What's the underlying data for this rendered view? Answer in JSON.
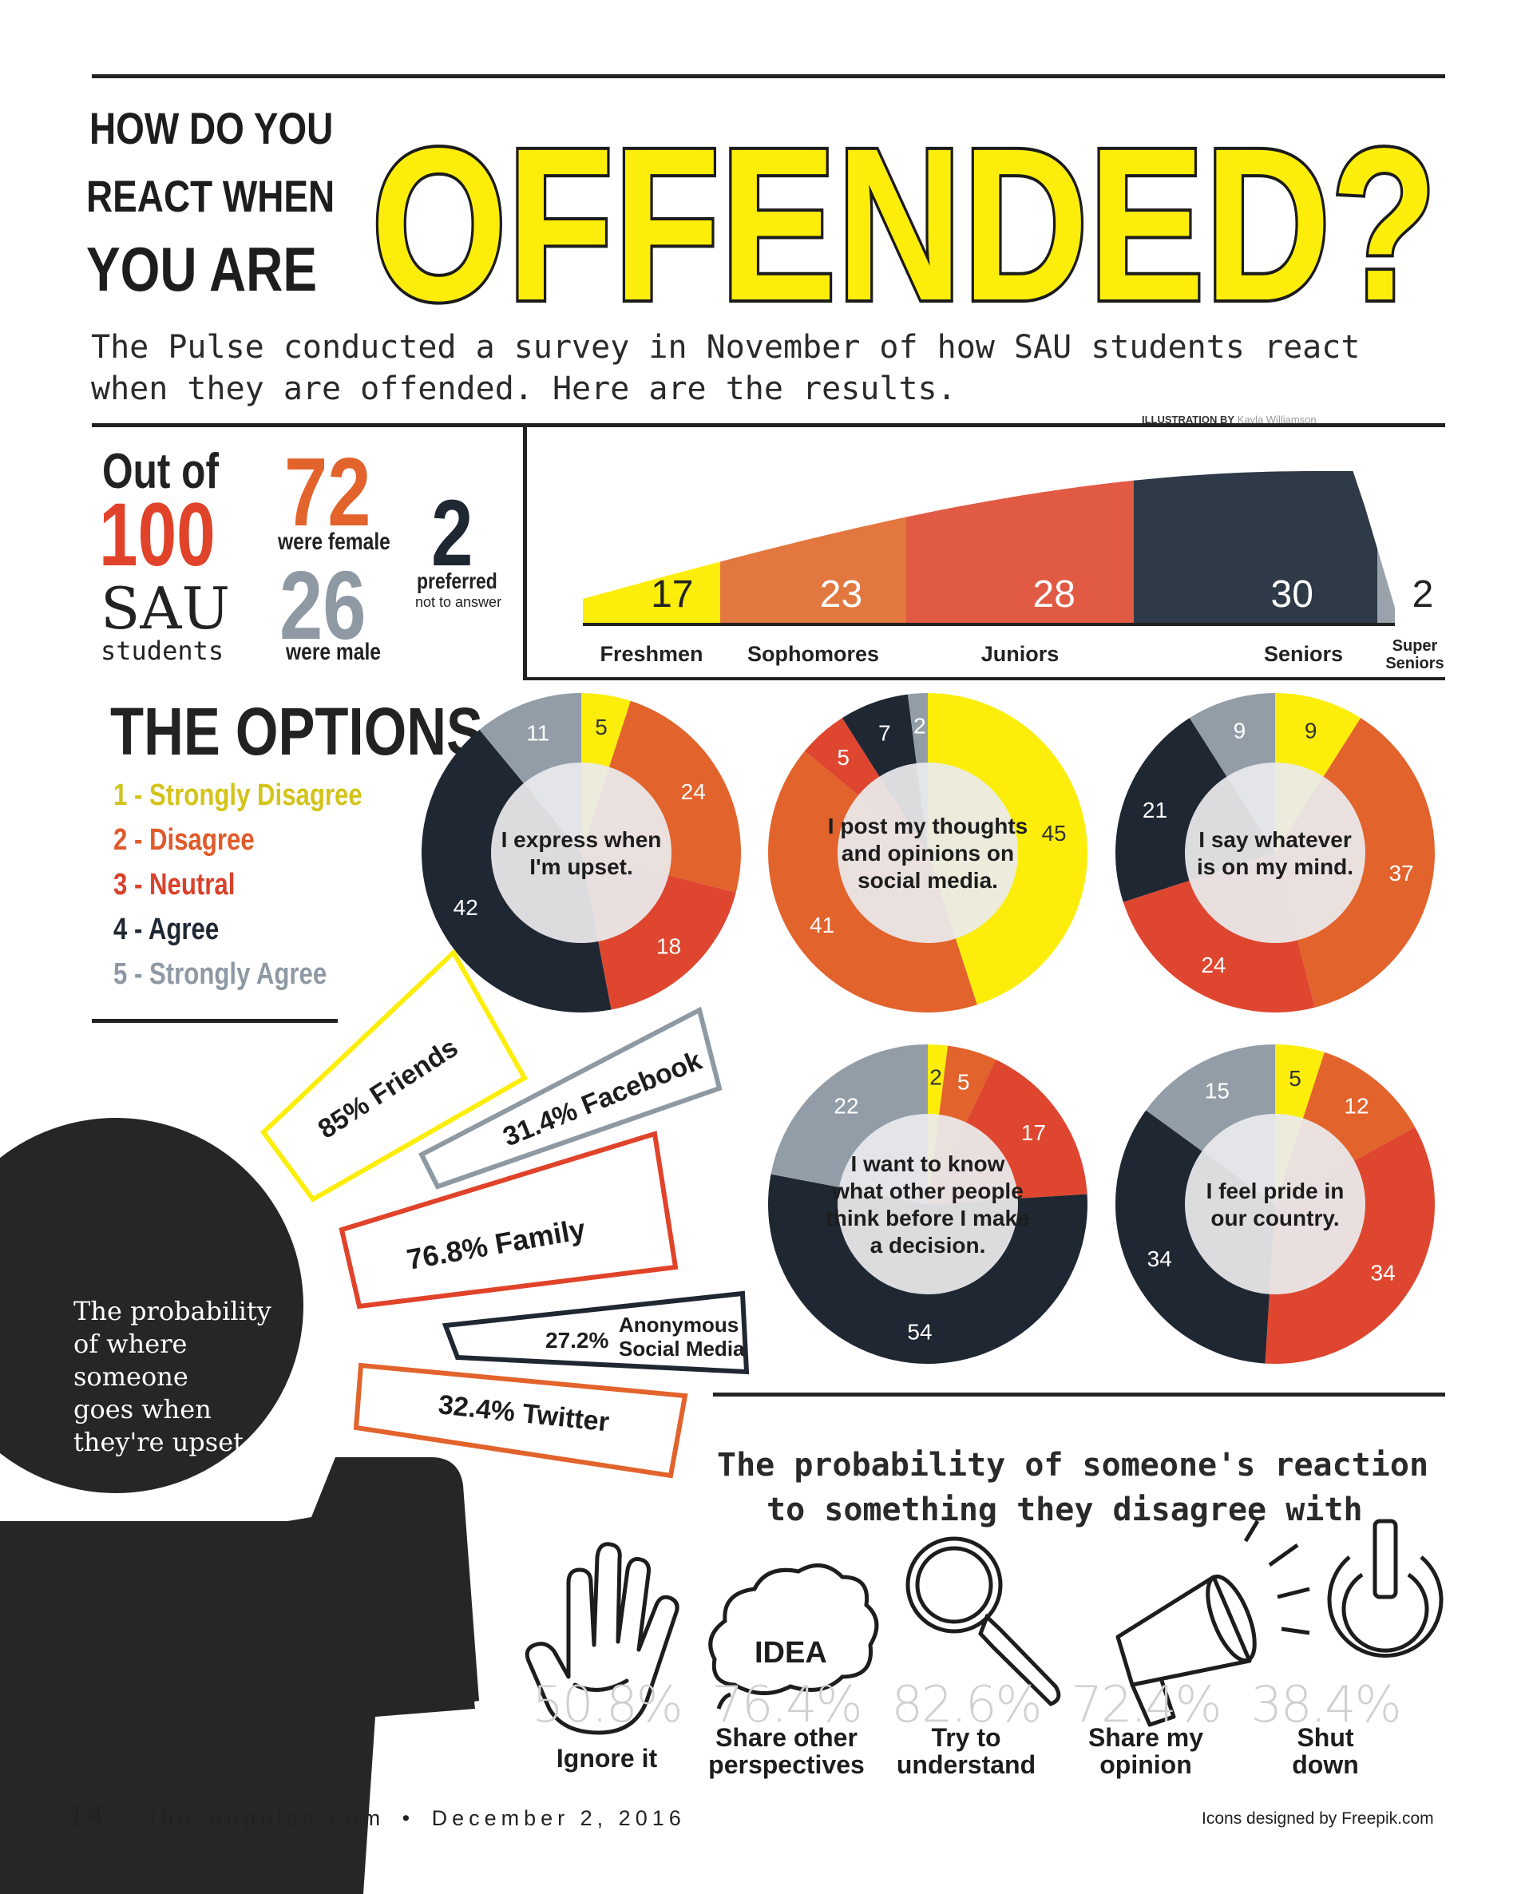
{
  "header": {
    "question_line1": "HOW DO YOU",
    "question_line2": "REACT WHEN",
    "question_line3": "YOU ARE",
    "headline": "OFFENDED?",
    "intro_line1": "The Pulse conducted a survey in November of how SAU students react",
    "intro_line2": "when they are offended. Here are the results.",
    "credit_label": "ILLUSTRATION BY",
    "credit_name": "Kayla Williamson"
  },
  "demographics": {
    "out_of": "Out of",
    "total": "100",
    "sau": "SAU",
    "students": "students",
    "female_count": "72",
    "female_label": "were female",
    "male_count": "26",
    "male_label": "were male",
    "other_count": "2",
    "other_label": "preferred",
    "other_sub": "not to answer"
  },
  "class_chart": {
    "type": "area",
    "categories": [
      "Freshmen",
      "Sophomores",
      "Juniors",
      "Seniors",
      "Super Seniors"
    ],
    "values": [
      17,
      23,
      28,
      30,
      2
    ],
    "colors": [
      "#fcee0a",
      "#e27740",
      "#e05a44",
      "#2e3a47",
      "#9aa3ac"
    ]
  },
  "options": {
    "title": "THE OPTIONS",
    "items": [
      {
        "label": "1 - Strongly Disagree",
        "color": "#d4c31a"
      },
      {
        "label": "2 - Disagree",
        "color": "#e05a2a"
      },
      {
        "label": "3 - Neutral",
        "color": "#d9412b"
      },
      {
        "label": "4 - Agree",
        "color": "#1f2733"
      },
      {
        "label": "5 - Strongly Agree",
        "color": "#8e99a3"
      }
    ]
  },
  "chart_data": [
    {
      "type": "pie",
      "title": "I express when I'm upset.",
      "categories": [
        "1",
        "2",
        "3",
        "4",
        "5"
      ],
      "values": [
        5,
        24,
        18,
        42,
        11
      ]
    },
    {
      "type": "pie",
      "title": "I post my thoughts and opinions on social media.",
      "categories": [
        "1",
        "2",
        "3",
        "4",
        "5"
      ],
      "values": [
        45,
        41,
        5,
        7,
        2
      ]
    },
    {
      "type": "pie",
      "title": "I say whatever is on my mind.",
      "categories": [
        "1",
        "2",
        "3",
        "4",
        "5"
      ],
      "values": [
        9,
        37,
        24,
        21,
        9
      ]
    },
    {
      "type": "pie",
      "title": "I want to know what other people think before I make a decision.",
      "categories": [
        "1",
        "2",
        "3",
        "4",
        "5"
      ],
      "values": [
        2,
        5,
        17,
        54,
        22
      ]
    },
    {
      "type": "pie",
      "title": "I feel pride in our country.",
      "categories": [
        "1",
        "2",
        "3",
        "4",
        "5"
      ],
      "values": [
        5,
        12,
        34,
        34,
        15
      ]
    }
  ],
  "pie_colors": [
    "#fcee0a",
    "#e2632c",
    "#df462f",
    "#1f2733",
    "#929da7"
  ],
  "pie_centers": [
    [
      "I express when",
      "I'm upset."
    ],
    [
      "I post my thoughts",
      "and opinions on",
      "social media."
    ],
    [
      "I say whatever",
      "is on my mind."
    ],
    [
      "I want to know",
      "what other people",
      "think before I make",
      "a decision."
    ],
    [
      "I feel pride in",
      "our country."
    ]
  ],
  "destinations": {
    "friends": "85% Friends",
    "facebook": "31.4% Facebook",
    "family": "76.8% Family",
    "anon_pct": "27.2%",
    "anon_line1": "Anonymous",
    "anon_line2": "Social Media",
    "twitter": "32.4% Twitter"
  },
  "silhouette": {
    "line1": "The probability",
    "line2": "of where",
    "line3": "someone",
    "line4": "goes when",
    "line5": "they're upset"
  },
  "reactions": {
    "title_line1": "The probability of someone's reaction",
    "title_line2": "to something they disagree with",
    "items": [
      {
        "pct": "50.8%",
        "line1": "Ignore it",
        "line2": "",
        "icon": "hand-icon"
      },
      {
        "pct": "76.4%",
        "line1": "Share other",
        "line2": "perspectives",
        "icon": "idea-cloud-icon"
      },
      {
        "pct": "82.6%",
        "line1": "Try to",
        "line2": "understand",
        "icon": "magnifier-icon"
      },
      {
        "pct": "72.4%",
        "line1": "Share my",
        "line2": "opinion",
        "icon": "megaphone-icon"
      },
      {
        "pct": "38.4%",
        "line1": "Shut",
        "line2": "down",
        "icon": "power-icon"
      }
    ],
    "idea_word": "IDEA"
  },
  "footer": {
    "page": "14",
    "site": "thesaupulse.com",
    "sep": "•",
    "date": "December 2, 2016",
    "credit": "Icons designed by Freepik.com"
  }
}
